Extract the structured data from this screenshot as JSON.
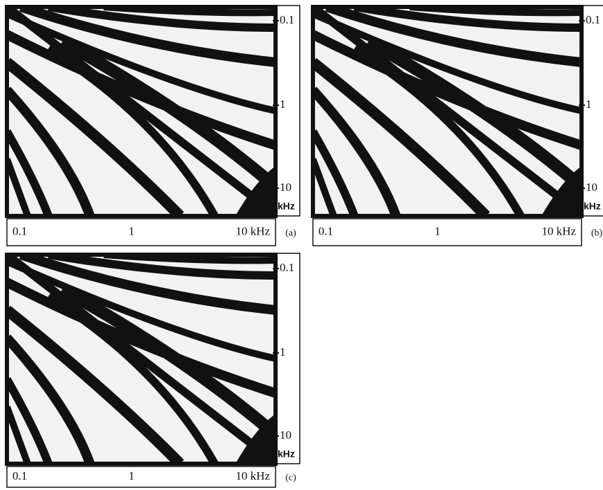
{
  "panels": [
    {
      "label": "(a)",
      "x_ticks": [
        "0.1",
        "1",
        "10 kHz"
      ],
      "y_ticks": [
        "0.1",
        "1",
        "10"
      ],
      "y_unit": "kHz"
    },
    {
      "label": "(b)",
      "x_ticks": [
        "0.1",
        "1",
        "10 kHz"
      ],
      "y_ticks": [
        "0.1",
        "1",
        "10"
      ],
      "y_unit": "kHz"
    },
    {
      "label": "(c)",
      "x_ticks": [
        "0.1",
        "1",
        "10 kHz"
      ],
      "y_ticks": [
        "0.1",
        "1",
        "10"
      ],
      "y_unit": "kHz"
    }
  ]
}
